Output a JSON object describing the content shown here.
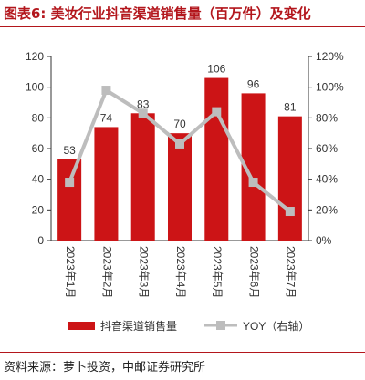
{
  "figure_label": "图表6:",
  "title": "美妆行业抖音渠道销售量（百万件）及变化",
  "source": "资料来源：萝卜投资，中邮证券研究所",
  "colors": {
    "bar": "#cc1416",
    "line": "#bdbdbd",
    "accent": "#b3161c",
    "axis": "#333333"
  },
  "chart_data": {
    "type": "bar",
    "categories": [
      "2023年1月",
      "2023年2月",
      "2023年3月",
      "2023年4月",
      "2023年5月",
      "2023年6月",
      "2023年7月"
    ],
    "series": [
      {
        "name": "抖音渠道销售量",
        "type": "bar",
        "axis": "left",
        "values": [
          53,
          74,
          83,
          70,
          106,
          96,
          81
        ]
      },
      {
        "name": "YOY（右轴）",
        "type": "line",
        "axis": "right",
        "marker": "square",
        "values": [
          38,
          98,
          83,
          63,
          84,
          38,
          19
        ]
      }
    ],
    "y_left": {
      "min": 0,
      "max": 120,
      "ticks": [
        0,
        20,
        40,
        60,
        80,
        100,
        120
      ]
    },
    "y_right": {
      "min": 0,
      "max": 120,
      "ticks": [
        "0%",
        "20%",
        "40%",
        "60%",
        "80%",
        "100%",
        "120%"
      ]
    },
    "data_labels": [
      "53",
      "74",
      "83",
      "70",
      "106",
      "96",
      "81"
    ],
    "legend": {
      "position": "bottom",
      "items": [
        "抖音渠道销售量",
        "YOY（右轴）"
      ]
    },
    "grid": false
  }
}
